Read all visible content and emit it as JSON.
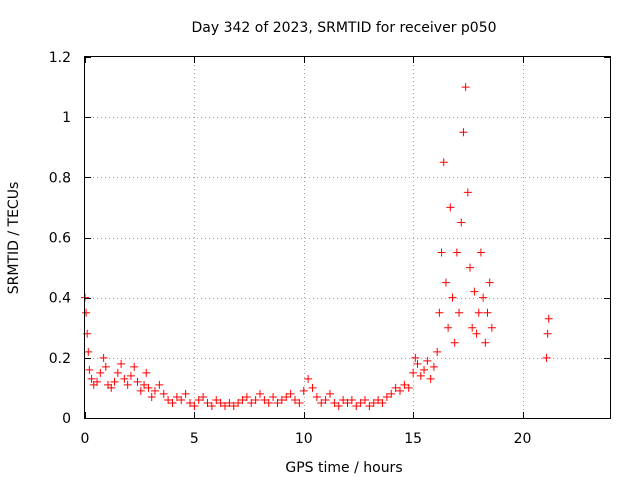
{
  "chart_data": {
    "type": "scatter",
    "title": "Day 342 of 2023, SRMTID for receiver p050",
    "xlabel": "GPS time / hours",
    "ylabel": "SRMTID / TECUs",
    "xlim": [
      0,
      24
    ],
    "ylim": [
      0,
      1.2
    ],
    "xticks": [
      0,
      5,
      10,
      15,
      20
    ],
    "xtick_labels": [
      "0",
      "5",
      "10",
      "15",
      "20"
    ],
    "yticks": [
      0,
      0.2,
      0.4,
      0.6,
      0.8,
      1,
      1.2
    ],
    "ytick_labels": [
      "0",
      "0.2",
      "0.4",
      "0.6",
      "0.8",
      "1",
      "1.2"
    ],
    "grid": true,
    "marker": "plus",
    "marker_color": "#ff0000",
    "series": [
      {
        "name": "SRMTID",
        "x": [
          0.0,
          0.05,
          0.1,
          0.15,
          0.2,
          0.3,
          0.4,
          0.55,
          0.7,
          0.85,
          0.95,
          1.05,
          1.2,
          1.35,
          1.5,
          1.65,
          1.8,
          1.95,
          2.1,
          2.25,
          2.4,
          2.55,
          2.7,
          2.8,
          2.9,
          3.05,
          3.2,
          3.4,
          3.6,
          3.8,
          4.0,
          4.2,
          4.4,
          4.6,
          4.8,
          5.0,
          5.2,
          5.4,
          5.6,
          5.8,
          6.0,
          6.2,
          6.4,
          6.6,
          6.8,
          7.0,
          7.2,
          7.4,
          7.6,
          7.8,
          8.0,
          8.2,
          8.4,
          8.6,
          8.8,
          9.0,
          9.2,
          9.4,
          9.6,
          9.8,
          10.0,
          10.2,
          10.4,
          10.6,
          10.8,
          11.0,
          11.2,
          11.4,
          11.6,
          11.8,
          12.0,
          12.2,
          12.4,
          12.6,
          12.8,
          13.0,
          13.2,
          13.4,
          13.6,
          13.8,
          14.0,
          14.2,
          14.4,
          14.6,
          14.8,
          15.0,
          15.1,
          15.2,
          15.35,
          15.5,
          15.65,
          15.8,
          15.95,
          16.1,
          16.2,
          16.3,
          16.4,
          16.5,
          16.6,
          16.7,
          16.8,
          16.9,
          17.0,
          17.1,
          17.2,
          17.3,
          17.4,
          17.5,
          17.6,
          17.7,
          17.8,
          17.9,
          18.0,
          18.1,
          18.2,
          18.3,
          18.4,
          18.5,
          18.6,
          21.1,
          21.15,
          21.2
        ],
        "y": [
          0.4,
          0.35,
          0.28,
          0.22,
          0.16,
          0.13,
          0.11,
          0.12,
          0.15,
          0.2,
          0.17,
          0.11,
          0.1,
          0.12,
          0.15,
          0.18,
          0.13,
          0.11,
          0.14,
          0.17,
          0.12,
          0.09,
          0.11,
          0.15,
          0.1,
          0.07,
          0.09,
          0.11,
          0.08,
          0.06,
          0.05,
          0.07,
          0.06,
          0.08,
          0.05,
          0.04,
          0.06,
          0.07,
          0.05,
          0.04,
          0.06,
          0.05,
          0.04,
          0.05,
          0.04,
          0.05,
          0.06,
          0.07,
          0.05,
          0.06,
          0.08,
          0.06,
          0.05,
          0.07,
          0.05,
          0.06,
          0.07,
          0.08,
          0.06,
          0.05,
          0.09,
          0.13,
          0.1,
          0.07,
          0.05,
          0.06,
          0.08,
          0.05,
          0.04,
          0.06,
          0.05,
          0.06,
          0.04,
          0.05,
          0.06,
          0.04,
          0.05,
          0.06,
          0.05,
          0.07,
          0.08,
          0.1,
          0.09,
          0.11,
          0.1,
          0.15,
          0.2,
          0.18,
          0.14,
          0.16,
          0.19,
          0.13,
          0.17,
          0.22,
          0.35,
          0.55,
          0.85,
          0.45,
          0.3,
          0.7,
          0.4,
          0.25,
          0.55,
          0.35,
          0.65,
          0.95,
          1.1,
          0.75,
          0.5,
          0.3,
          0.42,
          0.28,
          0.35,
          0.55,
          0.4,
          0.25,
          0.35,
          0.45,
          0.3,
          0.2,
          0.28,
          0.33
        ]
      }
    ]
  }
}
